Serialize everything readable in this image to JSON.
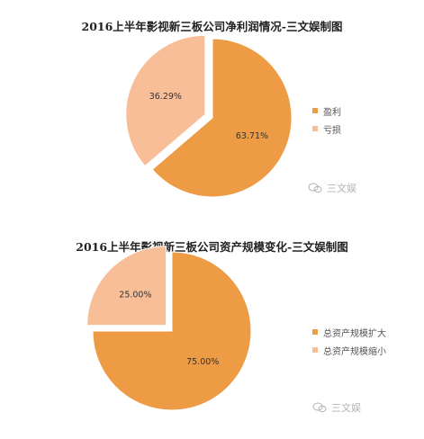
{
  "chart_data": [
    {
      "type": "pie",
      "title": "2016上半年影视新三板公司净利润情况-三文娱制图",
      "categories": [
        "盈利",
        "亏损"
      ],
      "values": [
        63.71,
        36.29
      ],
      "labels": [
        "63.71%",
        "36.29%"
      ],
      "colors": [
        "#EE9B45",
        "#F8BE97"
      ],
      "exploded": "亏损",
      "legend_position": "right"
    },
    {
      "type": "pie",
      "title": "2016上半年影视新三板公司资产规模变化-三文娱制图",
      "categories": [
        "总资产规模扩大",
        "总资产规模缩小"
      ],
      "values": [
        75.0,
        25.0
      ],
      "labels": [
        "75.00%",
        "25.00%"
      ],
      "colors": [
        "#EE9B45",
        "#F8BE97"
      ],
      "exploded": "总资产规模缩小",
      "legend_position": "right"
    }
  ],
  "watermark": {
    "text": "三文娱",
    "icon": "wechat-icon"
  }
}
